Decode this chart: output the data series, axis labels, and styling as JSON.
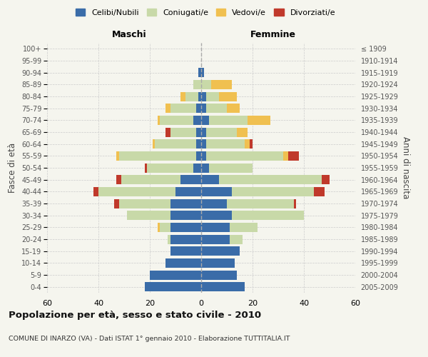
{
  "age_groups_bottom_to_top": [
    "0-4",
    "5-9",
    "10-14",
    "15-19",
    "20-24",
    "25-29",
    "30-34",
    "35-39",
    "40-44",
    "45-49",
    "50-54",
    "55-59",
    "60-64",
    "65-69",
    "70-74",
    "75-79",
    "80-84",
    "85-89",
    "90-94",
    "95-99",
    "100+"
  ],
  "birth_years_bottom_to_top": [
    "2005-2009",
    "2000-2004",
    "1995-1999",
    "1990-1994",
    "1985-1989",
    "1980-1984",
    "1975-1979",
    "1970-1974",
    "1965-1969",
    "1960-1964",
    "1955-1959",
    "1950-1954",
    "1945-1949",
    "1940-1944",
    "1935-1939",
    "1930-1934",
    "1925-1929",
    "1920-1924",
    "1915-1919",
    "1910-1914",
    "≤ 1909"
  ],
  "male": {
    "celibi": [
      22,
      20,
      14,
      12,
      12,
      12,
      12,
      12,
      10,
      8,
      3,
      2,
      2,
      2,
      3,
      2,
      1,
      0,
      1,
      0,
      0
    ],
    "coniugati": [
      0,
      0,
      0,
      0,
      1,
      4,
      17,
      20,
      30,
      23,
      18,
      30,
      16,
      10,
      13,
      10,
      5,
      3,
      0,
      0,
      0
    ],
    "vedovi": [
      0,
      0,
      0,
      0,
      0,
      1,
      0,
      0,
      0,
      0,
      0,
      1,
      1,
      0,
      1,
      2,
      2,
      0,
      0,
      0,
      0
    ],
    "divorziati": [
      0,
      0,
      0,
      0,
      0,
      0,
      0,
      2,
      2,
      2,
      1,
      0,
      0,
      2,
      0,
      0,
      0,
      0,
      0,
      0,
      0
    ]
  },
  "female": {
    "nubili": [
      17,
      14,
      13,
      15,
      11,
      11,
      12,
      10,
      12,
      7,
      3,
      2,
      2,
      2,
      3,
      2,
      2,
      0,
      1,
      0,
      0
    ],
    "coniugate": [
      0,
      0,
      0,
      0,
      5,
      11,
      28,
      26,
      32,
      40,
      17,
      30,
      15,
      12,
      15,
      8,
      5,
      4,
      0,
      0,
      0
    ],
    "vedove": [
      0,
      0,
      0,
      0,
      0,
      0,
      0,
      0,
      0,
      0,
      0,
      2,
      2,
      4,
      9,
      5,
      7,
      8,
      0,
      0,
      0
    ],
    "divorziate": [
      0,
      0,
      0,
      0,
      0,
      0,
      0,
      1,
      4,
      3,
      0,
      4,
      1,
      0,
      0,
      0,
      0,
      0,
      0,
      0,
      0
    ]
  },
  "colors": {
    "celibi": "#3a6ca8",
    "coniugati": "#c8d9a8",
    "vedovi": "#f0c050",
    "divorziati": "#c0392b"
  },
  "xlim": 60,
  "title": "Popolazione per età, sesso e stato civile - 2010",
  "subtitle": "COMUNE DI INARZO (VA) - Dati ISTAT 1° gennaio 2010 - Elaborazione TUTTITALIA.IT",
  "ylabel_left": "Fasce di età",
  "ylabel_right": "Anni di nascita",
  "bg_color": "#f5f5ee",
  "grid_color": "#cccccc"
}
